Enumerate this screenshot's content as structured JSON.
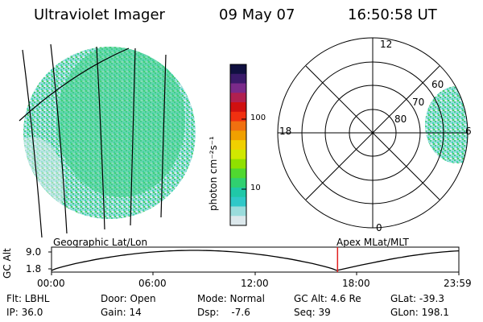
{
  "header": {
    "title": "Ultraviolet Imager",
    "date": "09 May 07",
    "time": "16:50:58 UT"
  },
  "colorbar": {
    "unit_label": "photon cm⁻²s⁻¹",
    "ticks": [
      "100",
      "10"
    ],
    "colors": [
      "#101040",
      "#3a1a6a",
      "#7a2a8a",
      "#b02050",
      "#d01010",
      "#f03010",
      "#f07010",
      "#f0a000",
      "#f0d000",
      "#d0e800",
      "#90e000",
      "#50d830",
      "#30d070",
      "#20c8a8",
      "#30c8c8",
      "#9adcdc",
      "#dce8ec"
    ],
    "aurora_color": "#3ccf88",
    "bg_color": "#b8e4e4"
  },
  "polar": {
    "labels_mlt": [
      "12",
      "18",
      "6",
      "0"
    ],
    "labels_lat": [
      "60",
      "70",
      "80"
    ]
  },
  "timeline": {
    "left_label": "Geographic Lat/Lon",
    "right_label": "Apex MLat/MLT",
    "axis_title": "GC Alt",
    "y_ticks": [
      "9.0",
      "1.8"
    ],
    "x_ticks": [
      "00:00",
      "06:00",
      "12:00",
      "18:00",
      "23:59"
    ],
    "marker_time_fraction": 0.7022
  },
  "footer": {
    "row1": [
      "Flt: LBHL",
      "Door: Open",
      "Mode: Normal",
      "GC Alt: 4.6 Re",
      "GLat: -39.3"
    ],
    "row2": [
      "IP: 36.0",
      "Gain: 14",
      "Dsp:    -7.6",
      "Seq: 39",
      "GLon: 198.1"
    ]
  }
}
